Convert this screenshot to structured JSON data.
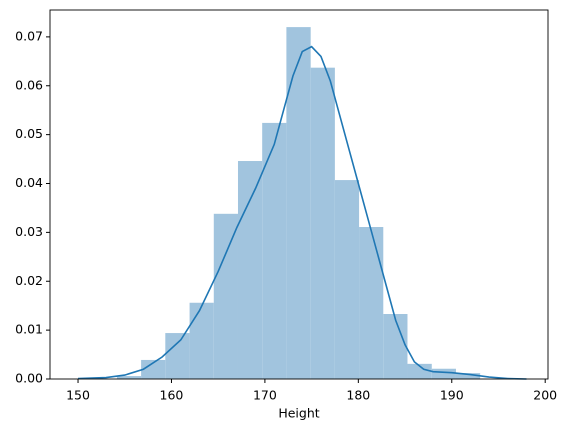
{
  "chart_data": {
    "type": "histogram",
    "x_label": "Height",
    "bins": [
      154.16,
      156.75,
      159.34,
      161.94,
      164.53,
      167.12,
      169.71,
      172.3,
      174.9,
      177.49,
      180.08,
      182.67,
      185.26,
      187.86,
      190.45,
      193.04
    ],
    "values": [
      0.0006,
      0.0039,
      0.0094,
      0.0156,
      0.0338,
      0.0446,
      0.0524,
      0.072,
      0.0637,
      0.0407,
      0.0311,
      0.0133,
      0.0031,
      0.0021,
      0.0012
    ],
    "color": "#a1c4de",
    "kde": {
      "color": "#1f77b4",
      "x": [
        150,
        153,
        155,
        157,
        159,
        161,
        163,
        165,
        167,
        169,
        171,
        172,
        173,
        174,
        175,
        176,
        177,
        178,
        179,
        180,
        181,
        182,
        183,
        184,
        185,
        186,
        187,
        188,
        190,
        192,
        194,
        196,
        198
      ],
      "y": [
        0.0001,
        0.0003,
        0.0008,
        0.002,
        0.0045,
        0.008,
        0.014,
        0.022,
        0.031,
        0.039,
        0.048,
        0.055,
        0.062,
        0.067,
        0.068,
        0.066,
        0.061,
        0.054,
        0.047,
        0.04,
        0.033,
        0.026,
        0.019,
        0.012,
        0.007,
        0.0035,
        0.002,
        0.0015,
        0.0013,
        0.0009,
        0.0004,
        0.0001,
        0
      ]
    },
    "xlim": [
      147.0,
      200.3
    ],
    "ylim": [
      0,
      0.0755
    ],
    "xticks": [
      150,
      160,
      170,
      180,
      190,
      200
    ],
    "yticks": [
      {
        "value": 0,
        "label": "0.00"
      },
      {
        "value": 0.01,
        "label": "0.01"
      },
      {
        "value": 0.02,
        "label": "0.02"
      },
      {
        "value": 0.03,
        "label": "0.03"
      },
      {
        "value": 0.04,
        "label": "0.04"
      },
      {
        "value": 0.05,
        "label": "0.05"
      },
      {
        "value": 0.06,
        "label": "0.06"
      },
      {
        "value": 0.07,
        "label": "0.07"
      }
    ]
  }
}
